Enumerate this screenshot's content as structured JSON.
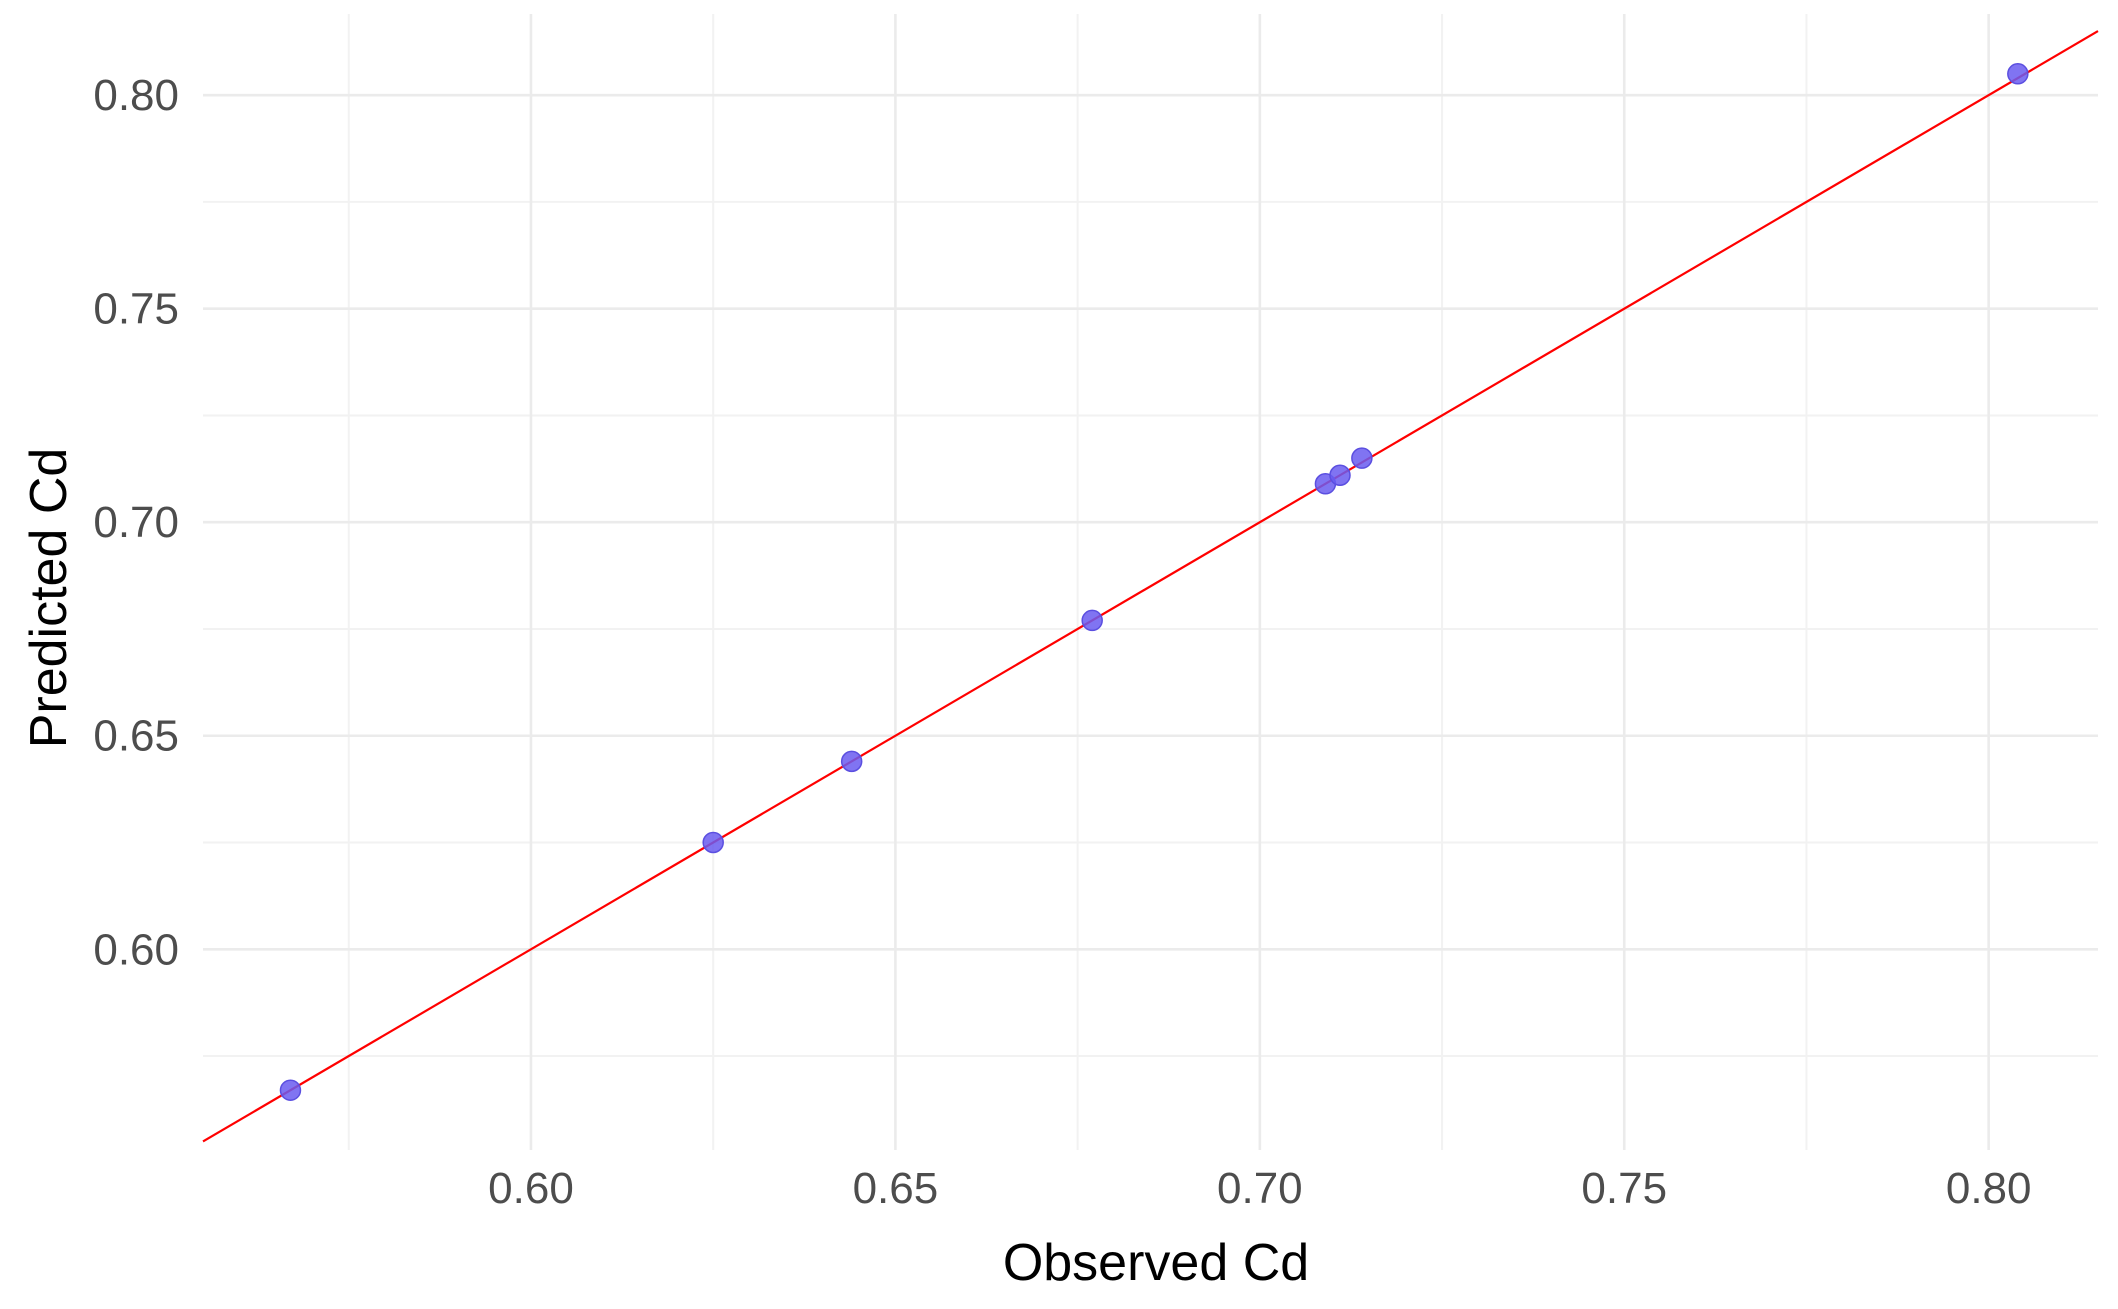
{
  "chart_data": {
    "type": "scatter",
    "title": "",
    "xlabel": "Observed Cd",
    "ylabel": "Predicted Cd",
    "xlim": [
      0.555,
      0.815
    ],
    "ylim": [
      0.553,
      0.819
    ],
    "x_ticks": [
      0.6,
      0.65,
      0.7,
      0.75,
      0.8
    ],
    "x_tick_labels": [
      "0.60",
      "0.65",
      "0.70",
      "0.75",
      "0.80"
    ],
    "y_ticks": [
      0.6,
      0.65,
      0.7,
      0.75,
      0.8
    ],
    "y_tick_labels": [
      "0.60",
      "0.65",
      "0.70",
      "0.75",
      "0.80"
    ],
    "x_minor_ticks": [
      0.575,
      0.625,
      0.675,
      0.725,
      0.775
    ],
    "y_minor_ticks": [
      0.575,
      0.625,
      0.675,
      0.725,
      0.775
    ],
    "grid": true,
    "series": [
      {
        "points": [
          {
            "x": 0.567,
            "y": 0.567
          },
          {
            "x": 0.625,
            "y": 0.625
          },
          {
            "x": 0.644,
            "y": 0.644
          },
          {
            "x": 0.677,
            "y": 0.677
          },
          {
            "x": 0.709,
            "y": 0.709
          },
          {
            "x": 0.711,
            "y": 0.711
          },
          {
            "x": 0.714,
            "y": 0.715
          },
          {
            "x": 0.804,
            "y": 0.805
          }
        ],
        "color": "#6a5cf0"
      }
    ],
    "reference_line": {
      "slope": 1,
      "intercept": 0,
      "color": "#ff0000"
    }
  }
}
